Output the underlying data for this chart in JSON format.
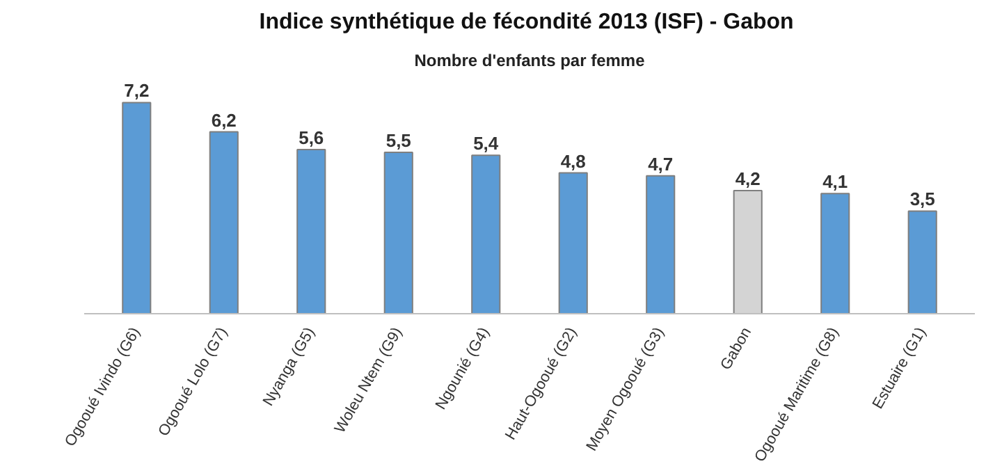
{
  "chart_data": {
    "type": "bar",
    "title": "Indice synthétique de fécondité 2013  (ISF) - Gabon",
    "subtitle": "Nombre d'enfants par femme",
    "categories": [
      "Ogooué Ivindo (G6)",
      "Ogooué Lolo (G7)",
      "Nyanga (G5)",
      "Woleu Ntem (G9)",
      "Ngounié (G4)",
      "Haut-Ogooué (G2)",
      "Moyen Ogooué (G3)",
      "Gabon",
      "Ogooué Maritime (G8)",
      "Estuaire (G1)"
    ],
    "values": [
      7.2,
      6.2,
      5.6,
      5.5,
      5.4,
      4.8,
      4.7,
      4.2,
      4.1,
      3.5
    ],
    "colors": [
      "#5b9bd5",
      "#5b9bd5",
      "#5b9bd5",
      "#5b9bd5",
      "#5b9bd5",
      "#5b9bd5",
      "#5b9bd5",
      "#d4d4d4",
      "#5b9bd5",
      "#5b9bd5"
    ],
    "value_labels": [
      "7,2",
      "6,2",
      "5,6",
      "5,5",
      "5,4",
      "4,8",
      "4,7",
      "4,2",
      "4,1",
      "3,5"
    ],
    "grid": false
  }
}
